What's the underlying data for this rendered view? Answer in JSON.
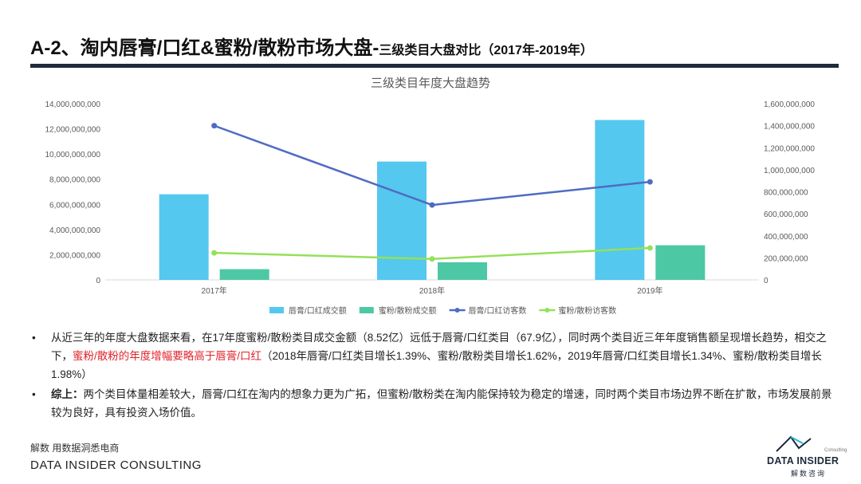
{
  "header": {
    "title_main": "A-2、淘内唇膏/口红&蜜粉/散粉市场大盘-",
    "title_sub": "三级类目大盘对比（2017年-2019年）"
  },
  "chart_data": {
    "type": "bar+line",
    "title": "三级类目年度大盘趋势",
    "categories": [
      "2017年",
      "2018年",
      "2019年"
    ],
    "left_axis": {
      "min": 0,
      "max": 14000000000,
      "ticks": [
        "0",
        "2,000,000,000",
        "4,000,000,000",
        "6,000,000,000",
        "8,000,000,000",
        "10,000,000,000",
        "12,000,000,000",
        "14,000,000,000"
      ]
    },
    "right_axis": {
      "min": 0,
      "max": 1600000000,
      "ticks": [
        "0",
        "200,000,000",
        "400,000,000",
        "600,000,000",
        "800,000,000",
        "1,000,000,000",
        "1,200,000,000",
        "1,400,000,000",
        "1,600,000,000"
      ]
    },
    "series": [
      {
        "name": "唇膏/口红成交额",
        "kind": "bar",
        "axis": "left",
        "color": "#54c8ef",
        "values": [
          6800000000,
          9400000000,
          12700000000
        ]
      },
      {
        "name": "蜜粉/散粉成交额",
        "kind": "bar",
        "axis": "left",
        "color": "#4dc8a4",
        "values": [
          850000000,
          1400000000,
          2750000000
        ]
      },
      {
        "name": "唇膏/口红访客数",
        "kind": "line",
        "axis": "right",
        "color": "#4f6bc3",
        "values": [
          1400000000,
          680000000,
          890000000
        ]
      },
      {
        "name": "蜜粉/散粉访客数",
        "kind": "line",
        "axis": "right",
        "color": "#95e05a",
        "values": [
          245000000,
          190000000,
          290000000
        ]
      }
    ],
    "legend_position": "bottom",
    "grid": false
  },
  "bullets": {
    "b1_p1": "从近三年的年度大盘数据来看，在17年度蜜粉/散粉类目成交金额（8.52亿）远低于唇膏/口红类目（67.9亿），同时两个类目近三年年度销售额呈现增长趋势，相交之下，",
    "b1_hl": "蜜粉/散粉的年度增幅要略高于唇膏/口红",
    "b1_p2": "（2018年唇膏/口红类目增长1.39%、蜜粉/散粉类目增长1.62%，2019年唇膏/口红类目增长1.34%、蜜粉/散粉类目增长1.98%）",
    "b2_bold": "综上：",
    "b2_text": "两个类目体量相差较大，唇膏/口红在淘内的想象力更为广拓，但蜜粉/散粉类在淘内能保持较为稳定的增速，同时两个类目市场边界不断在扩散，市场发展前景较为良好，具有投资入场价值。",
    "dot": "•"
  },
  "footer": {
    "cn": "解数 用数据洞悉电商",
    "en": "DATA INSIDER CONSULTING"
  },
  "logo": {
    "en": "DATA INSIDER",
    "cn": "解数咨询",
    "small": "Consulting"
  }
}
